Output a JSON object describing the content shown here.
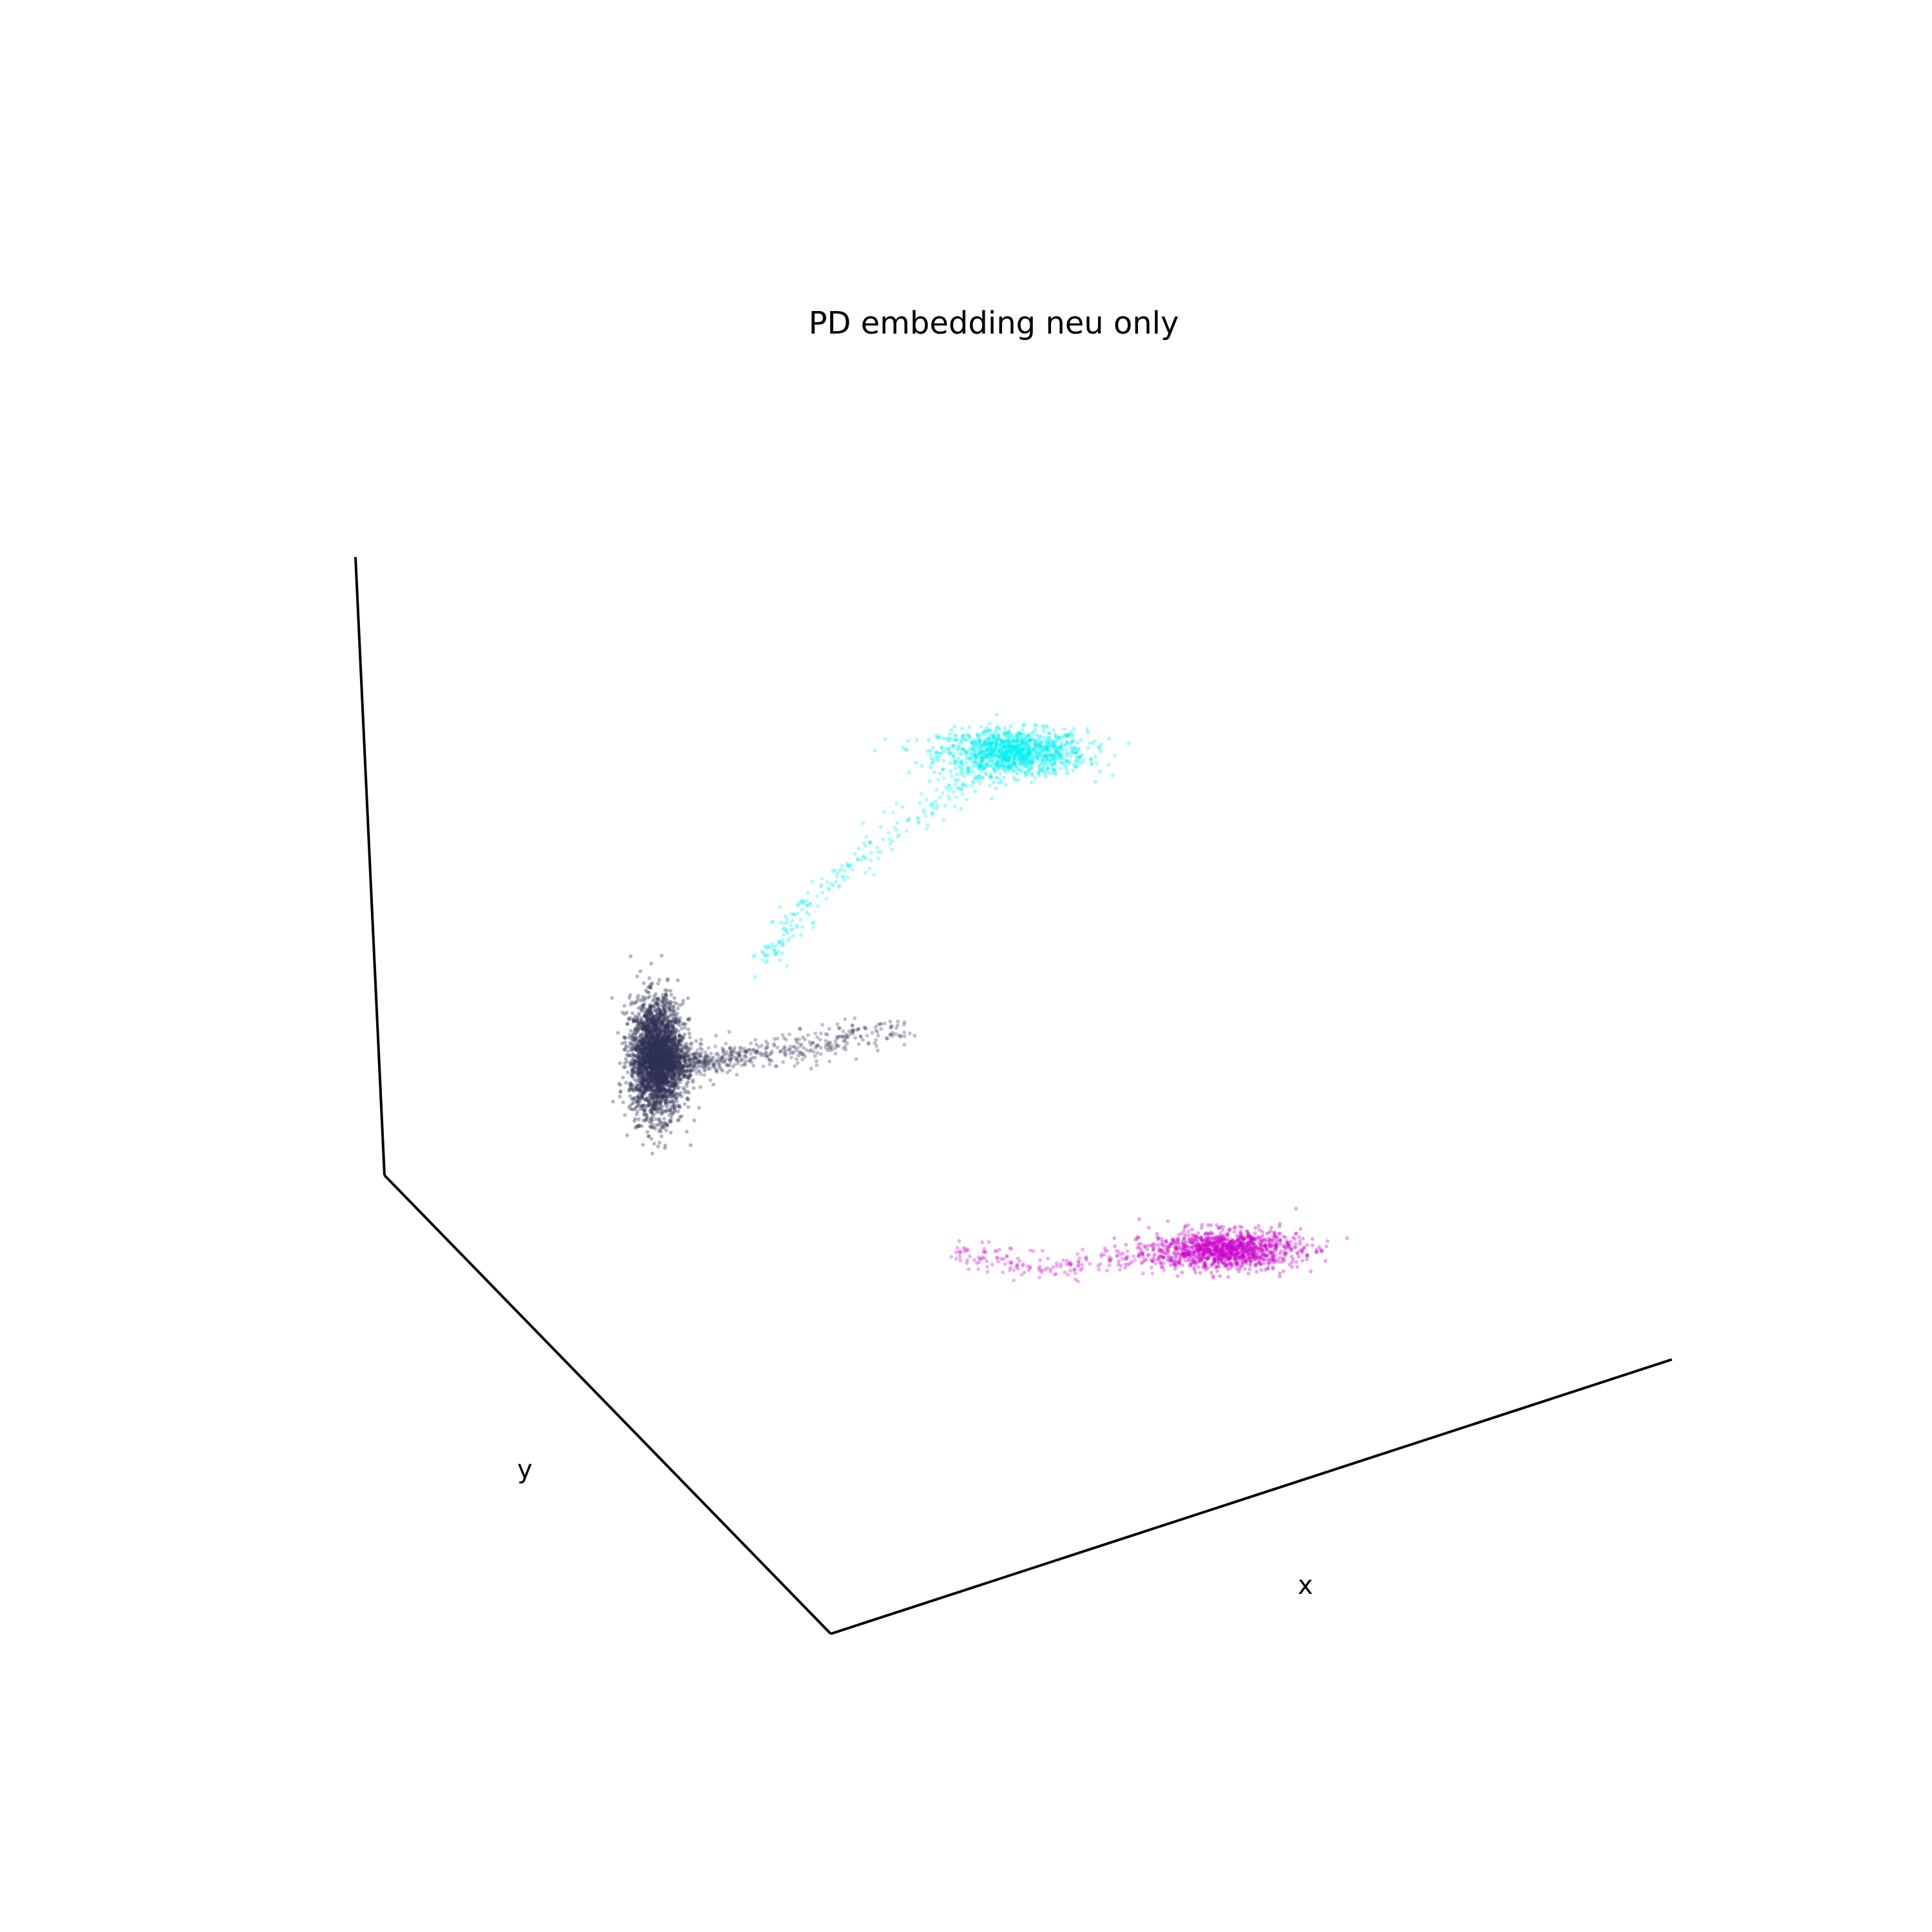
{
  "chart_data": {
    "type": "scatter",
    "projection": "3d",
    "title": "PD embedding neu only",
    "xlabel": "x",
    "ylabel": "y",
    "zlabel": "",
    "grid": false,
    "panes": false,
    "ticks": false,
    "clusters": [
      {
        "color": "#00f0f0",
        "approx_points": 1400,
        "center": [
          0.52,
          0.83
        ],
        "spread": [
          0.05,
          0.018
        ],
        "tail_toward": [
          0.18,
          0.5
        ]
      },
      {
        "color": "#2e3152",
        "approx_points": 3500,
        "center": [
          0.035,
          0.35
        ],
        "spread": [
          0.018,
          0.045
        ],
        "tail_toward": [
          0.38,
          0.4
        ]
      },
      {
        "color": "#cc00cc",
        "approx_points": 1400,
        "center": [
          0.81,
          0.05
        ],
        "spread": [
          0.05,
          0.015
        ],
        "tail_toward": [
          0.45,
          0.05
        ]
      }
    ]
  }
}
